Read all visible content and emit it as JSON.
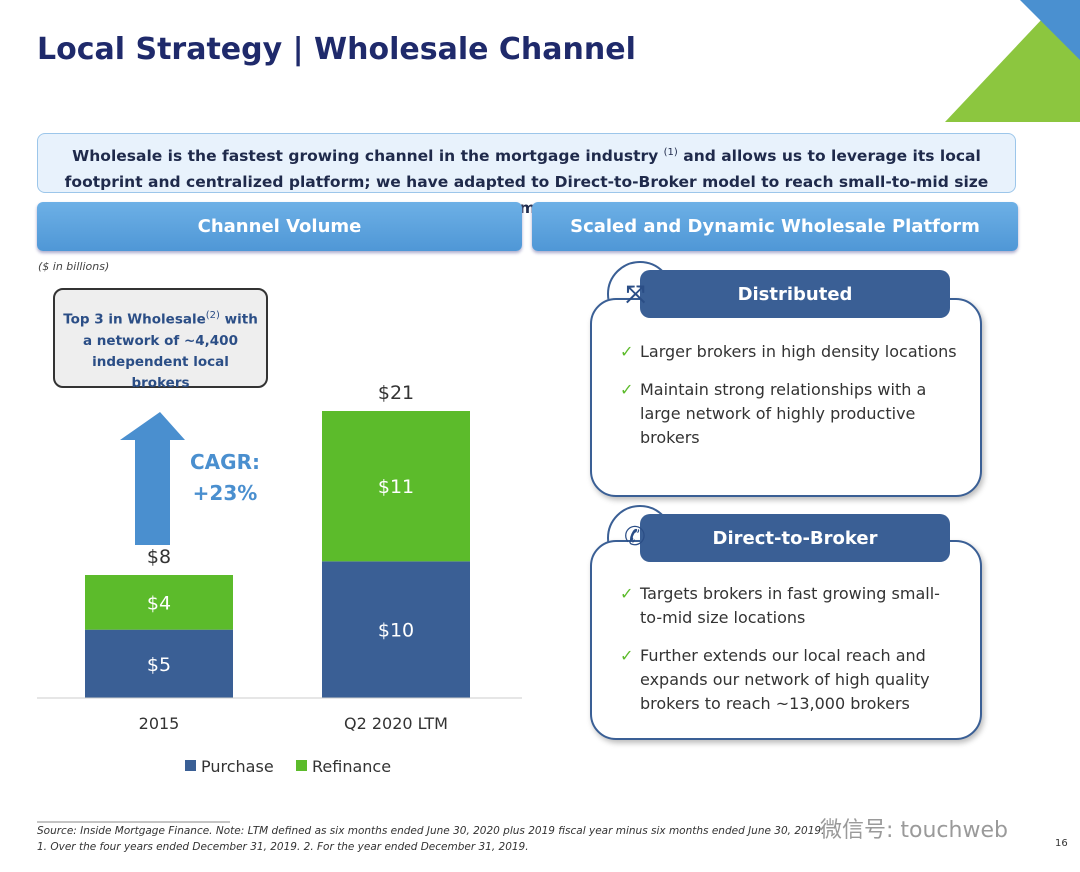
{
  "title": "Local Strategy | Wholesale Channel",
  "banner": {
    "text_before": "Wholesale is the fastest growing channel in the mortgage industry",
    "note": "(1)",
    "text_after": "and allows us to leverage its local footprint and centralized platform; we have adapted to Direct-to-Broker model to reach small-to-mid size segment"
  },
  "left_header": "Channel Volume",
  "right_header": "Scaled and Dynamic Wholesale Platform",
  "chart_data": {
    "type": "bar",
    "stacked": true,
    "subtitle": "($ in billions)",
    "categories": [
      "2015",
      "Q2 2020 LTM"
    ],
    "series": [
      {
        "name": "Purchase",
        "color": "#3a5f95",
        "values": [
          5,
          10
        ],
        "value_labels": [
          "$5",
          "$10"
        ]
      },
      {
        "name": "Refinance",
        "color": "#5cbb2b",
        "values": [
          4,
          11
        ],
        "value_labels": [
          "$4",
          "$11"
        ]
      }
    ],
    "totals": {
      "values": [
        8,
        21
      ],
      "value_labels": [
        "$8",
        "$21"
      ]
    },
    "callout": {
      "text_before": "Top 3 in Wholesale",
      "note": "(2)",
      "text_after": "with a network of ~4,400 independent local brokers"
    },
    "annotation": {
      "label": "CAGR:",
      "value": "+23%"
    }
  },
  "cards": [
    {
      "title": "Distributed",
      "bullets": [
        "Larger brokers in high density locations",
        "Maintain strong relationships with a large network of highly productive brokers"
      ]
    },
    {
      "title": "Direct-to-Broker",
      "bullets": [
        "Targets brokers in fast growing small-to-mid size locations",
        "Further extends our local reach and expands our network of high quality brokers to reach ~13,000 brokers"
      ]
    }
  ],
  "footer": {
    "source": "Source: Inside Mortgage Finance. Note: LTM defined as six months ended June 30, 2020 plus 2019 fiscal year minus six months ended June 30, 2019.",
    "notes": "1. Over the four years ended December 31, 2019. 2. For the year ended December 31, 2019.",
    "page": "16"
  },
  "watermark": "微信号: touchweb"
}
